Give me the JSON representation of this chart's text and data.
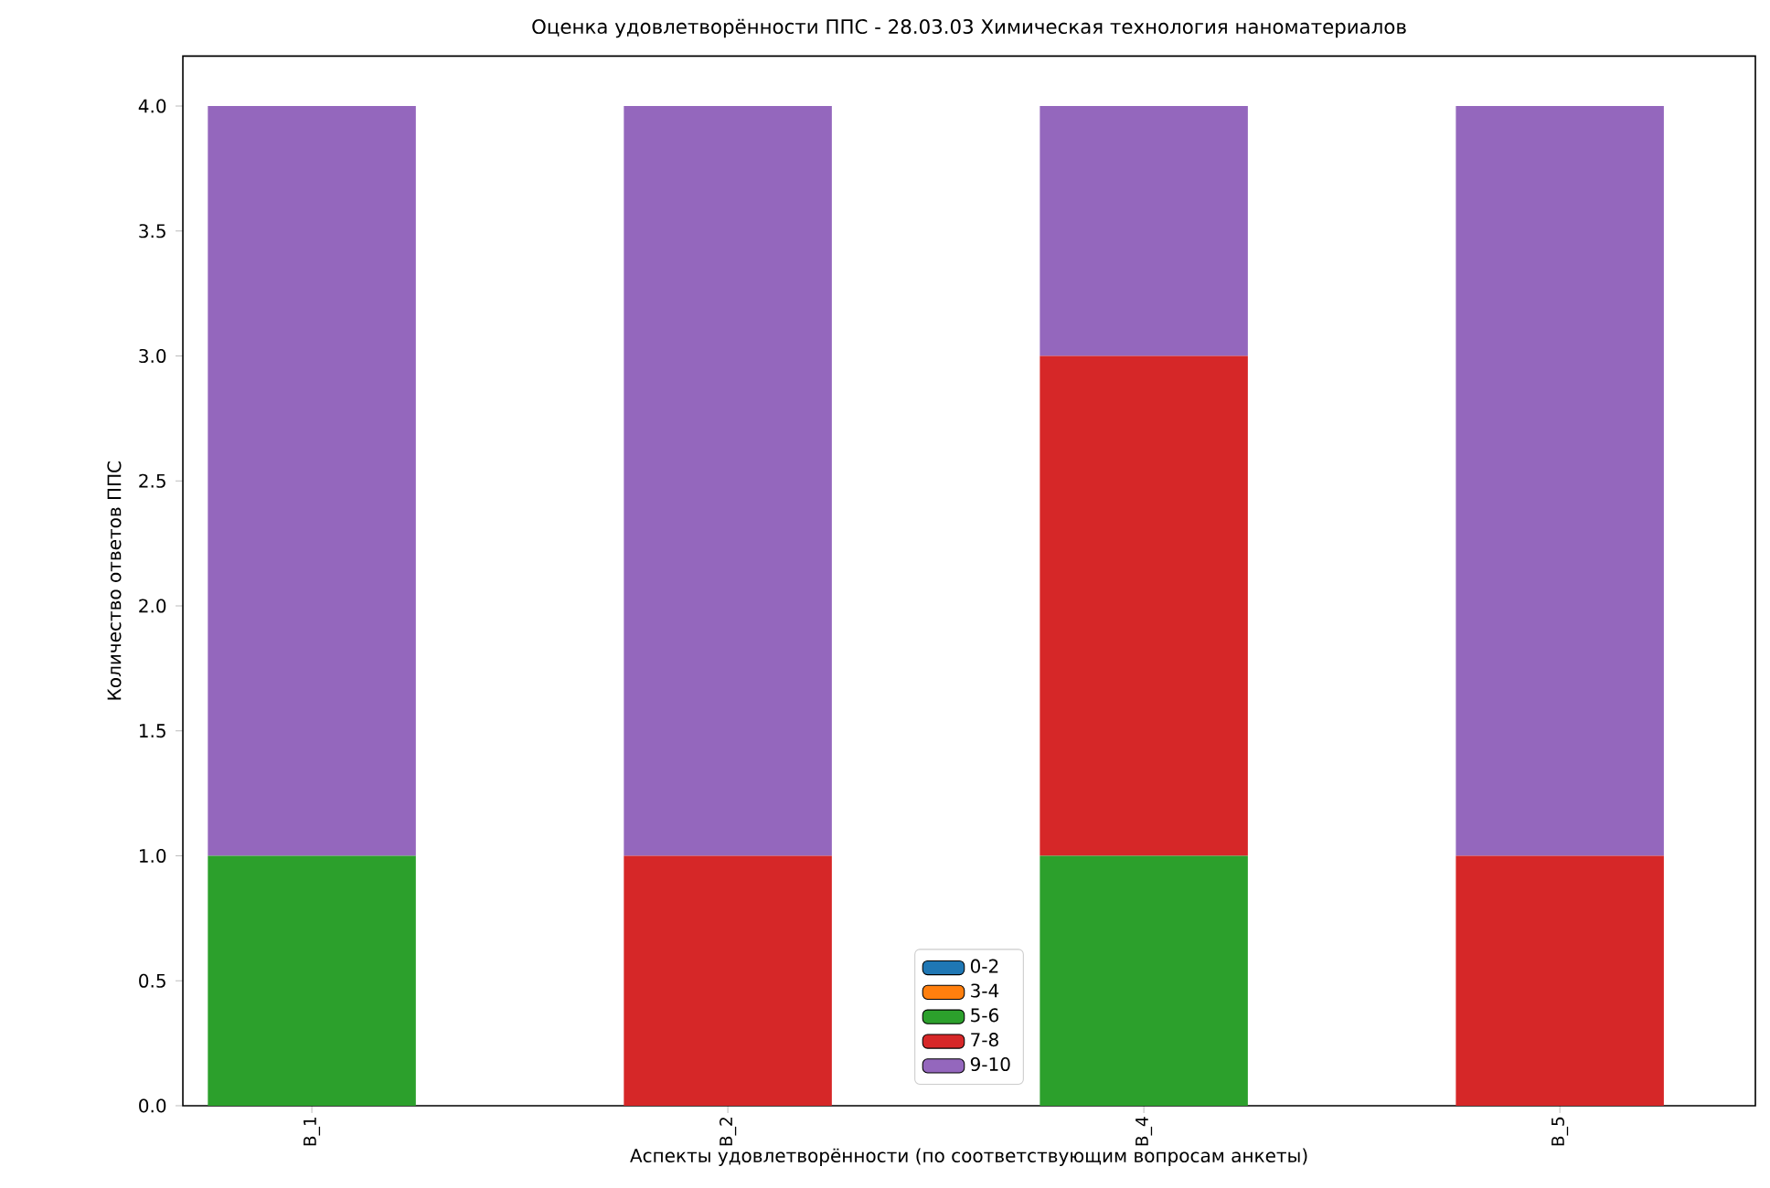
{
  "chart_data": {
    "type": "bar",
    "stacked": true,
    "title": "Оценка удовлетворённости ППС - 28.03.03 Химическая технология наноматериалов",
    "xlabel": "Аспекты удовлетворённости (по соответствующим вопросам анкеты)",
    "ylabel": "Количество ответов ППС",
    "categories": [
      "В_1",
      "В_2",
      "В_4",
      "В_5"
    ],
    "series": [
      {
        "name": "0-2",
        "color": "#1f77b4",
        "values": [
          0,
          0,
          0,
          0
        ]
      },
      {
        "name": "3-4",
        "color": "#ff7f0e",
        "values": [
          0,
          0,
          0,
          0
        ]
      },
      {
        "name": "5-6",
        "color": "#2ca02c",
        "values": [
          1,
          0,
          1,
          0
        ]
      },
      {
        "name": "7-8",
        "color": "#d62728",
        "values": [
          0,
          1,
          2,
          1
        ]
      },
      {
        "name": "9-10",
        "color": "#9467bd",
        "values": [
          3,
          3,
          1,
          3
        ]
      }
    ],
    "ylim": [
      0,
      4.2
    ],
    "yticks": [
      {
        "value": 0,
        "label": "0.0"
      },
      0.5,
      {
        "value": 1,
        "label": "1.0"
      },
      1.5,
      {
        "value": 2,
        "label": "2.0"
      },
      2.5,
      {
        "value": 3,
        "label": "3.0"
      },
      3.5,
      {
        "value": 4,
        "label": "4.0"
      }
    ],
    "legend": "bottom",
    "grid": false
  }
}
